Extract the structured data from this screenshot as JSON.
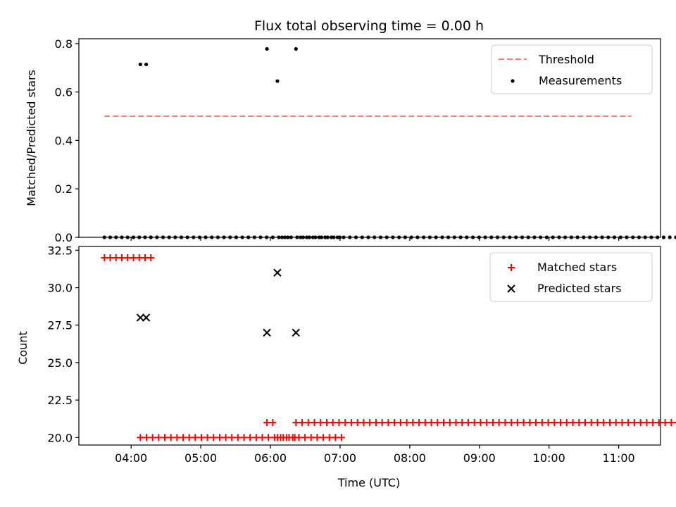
{
  "chart_data": [
    {
      "type": "scatter",
      "title": "Flux total observing time = 0.00 h",
      "xlabel": "",
      "ylabel": "Matched/Predicted stars",
      "xlim": [
        "03:15",
        "11:36"
      ],
      "ylim": [
        0,
        0.82
      ],
      "yticks": [
        0.0,
        0.2,
        0.4,
        0.6,
        0.8
      ],
      "ytick_labels": [
        "0.0",
        "0.2",
        "0.4",
        "0.6",
        "0.8"
      ],
      "grid": false,
      "legend_position": "top-right",
      "threshold": {
        "name": "Threshold",
        "y": 0.5,
        "x_start": "03:37",
        "x_end": "11:11",
        "color": "#ff7f7f"
      },
      "measurements": {
        "name": "Measurements",
        "color": "#000000",
        "points": [
          {
            "x": "04:08",
            "y": 0.714
          },
          {
            "x": "04:13",
            "y": 0.714
          },
          {
            "x": "05:57",
            "y": 0.778
          },
          {
            "x": "06:06",
            "y": 0.645
          },
          {
            "x": "06:22",
            "y": 0.778
          }
        ],
        "zero_series": [
          {
            "start": "03:37",
            "step_minutes": 5,
            "count": 9
          },
          {
            "start": "04:17",
            "step_minutes": 5.25,
            "count": 32
          },
          {
            "start": "06:10",
            "step_minutes": 5,
            "count": 2
          },
          {
            "start": "06:26",
            "step_minutes": 5.3,
            "count": 90
          }
        ]
      }
    },
    {
      "type": "scatter",
      "title": "",
      "xlabel": "Time (UTC)",
      "ylabel": "Count",
      "xlim": [
        "03:15",
        "11:36"
      ],
      "ylim": [
        19.5,
        32.75
      ],
      "yticks": [
        20.0,
        22.5,
        25.0,
        27.5,
        30.0,
        32.5
      ],
      "ytick_labels": [
        "20.0",
        "22.5",
        "25.0",
        "27.5",
        "30.0",
        "32.5"
      ],
      "xticks": [
        "04:00",
        "05:00",
        "06:00",
        "07:00",
        "08:00",
        "09:00",
        "10:00",
        "11:00"
      ],
      "grid": false,
      "legend_position": "top-right",
      "matched": {
        "name": "Matched stars",
        "color": "#ff0000",
        "groups": [
          {
            "start": "03:37",
            "step_minutes": 5,
            "count": 9,
            "y": 32
          },
          {
            "start": "04:08",
            "step_minutes": 5.25,
            "count": 34,
            "y": 20
          },
          {
            "start": "05:57",
            "step_minutes": 5,
            "count": 2,
            "y": 21
          },
          {
            "start": "06:06",
            "step_minutes": 5,
            "count": 4,
            "y": 20
          },
          {
            "start": "06:22",
            "step_minutes": 5.3,
            "count": 91,
            "y": 21
          }
        ]
      },
      "predicted": {
        "name": "Predicted stars",
        "color": "#000000",
        "points": [
          {
            "x": "04:08",
            "y": 28
          },
          {
            "x": "04:13",
            "y": 28
          },
          {
            "x": "05:57",
            "y": 27
          },
          {
            "x": "06:06",
            "y": 31
          },
          {
            "x": "06:22",
            "y": 27
          }
        ]
      }
    }
  ]
}
